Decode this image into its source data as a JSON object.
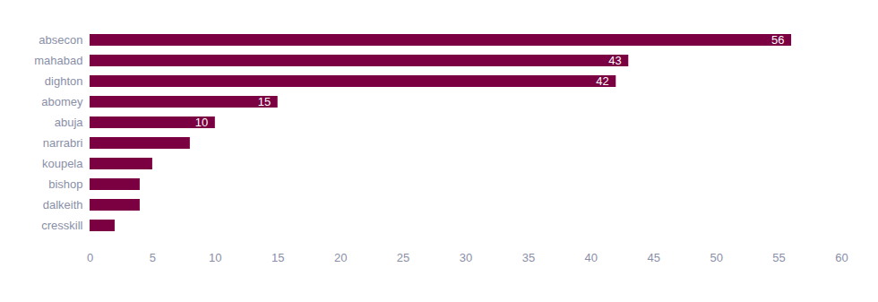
{
  "chart_data": {
    "type": "bar",
    "orientation": "horizontal",
    "categories": [
      "absecon",
      "mahabad",
      "dighton",
      "abomey",
      "abuja",
      "narrabri",
      "koupela",
      "bishop",
      "dalkeith",
      "cresskill"
    ],
    "values": [
      56,
      43,
      42,
      15,
      10,
      8,
      5,
      4,
      4,
      2
    ],
    "value_labels": [
      "56",
      "43",
      "42",
      "15",
      "10",
      null,
      null,
      null,
      null,
      null
    ],
    "data_labels": true,
    "color": "#7b0041",
    "xlim": [
      0,
      60
    ],
    "xticks": [
      0,
      5,
      10,
      15,
      20,
      25,
      30,
      35,
      40,
      45,
      50,
      55,
      60
    ],
    "grid": false
  }
}
